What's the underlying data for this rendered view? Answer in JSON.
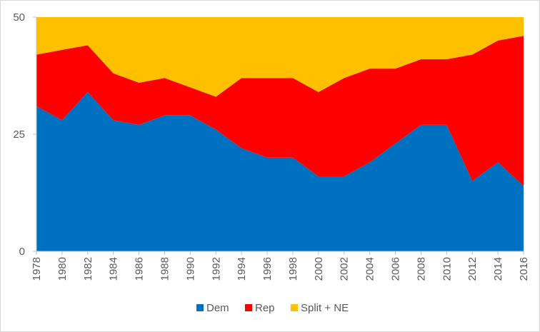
{
  "chart_data": {
    "type": "area",
    "stacked": true,
    "title": "",
    "xlabel": "",
    "ylabel": "",
    "ylim": [
      0,
      50
    ],
    "yticks": [
      0,
      25,
      50
    ],
    "grid": false,
    "legend_position": "bottom",
    "x": [
      "1978",
      "1980",
      "1982",
      "1984",
      "1986",
      "1988",
      "1990",
      "1992",
      "1994",
      "1996",
      "1998",
      "2000",
      "2002",
      "2004",
      "2006",
      "2008",
      "2010",
      "2012",
      "2014",
      "2016"
    ],
    "series": [
      {
        "name": "Dem",
        "color": "#0070c0",
        "values": [
          31,
          28,
          34,
          28,
          27,
          29,
          29,
          26,
          22,
          20,
          20,
          16,
          16,
          19,
          23,
          27,
          27,
          15,
          19,
          14
        ]
      },
      {
        "name": "Rep",
        "color": "#ff0000",
        "values": [
          11,
          15,
          10,
          10,
          9,
          8,
          6,
          7,
          15,
          17,
          17,
          18,
          21,
          20,
          16,
          14,
          14,
          27,
          26,
          32
        ]
      },
      {
        "name": "Split + NE",
        "color": "#ffc000",
        "values": [
          8,
          7,
          6,
          12,
          14,
          13,
          15,
          17,
          13,
          13,
          13,
          16,
          13,
          11,
          11,
          9,
          9,
          8,
          5,
          4
        ]
      }
    ]
  }
}
